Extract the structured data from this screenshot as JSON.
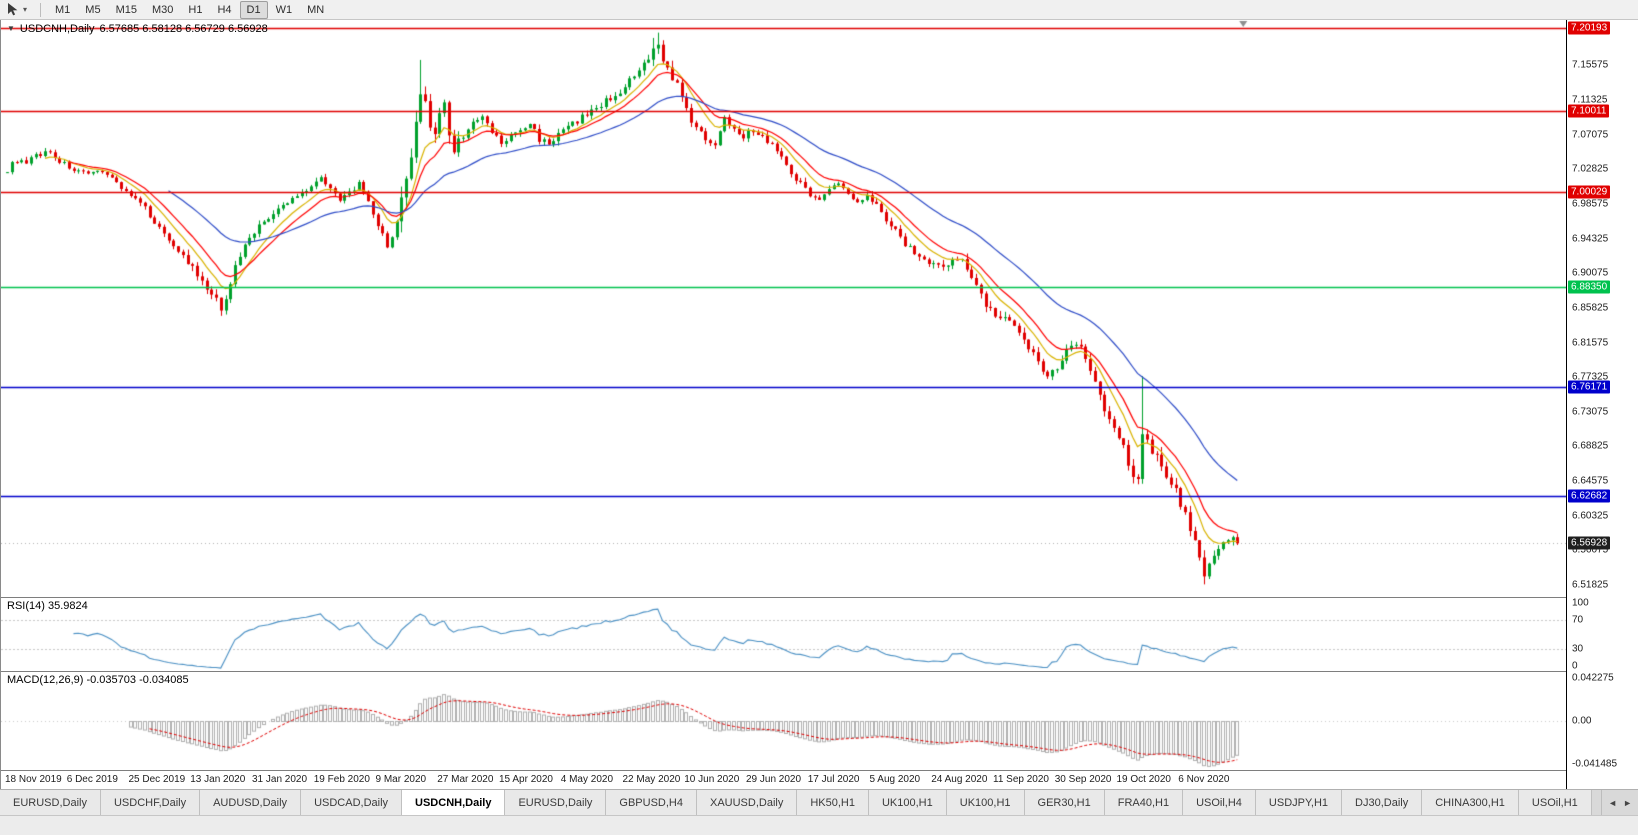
{
  "toolbar": {
    "timeframes": [
      "M1",
      "M5",
      "M15",
      "M30",
      "H1",
      "H4",
      "D1",
      "W1",
      "MN"
    ],
    "active_timeframe": "D1"
  },
  "chart_window": {
    "title": "USDCNH,Daily",
    "ohlc_readout": "6.57685 6.58128 6.56729 6.56928"
  },
  "chart_data": {
    "type": "candlestick",
    "symbol": "USDCNH",
    "timeframe": "Daily",
    "bars": 260,
    "bar_spacing_px": 4.75,
    "price_range": [
      6.5035,
      7.2115
    ],
    "y_ticks": [
      "7.15575",
      "7.11325",
      "7.07075",
      "7.02825",
      "6.98575",
      "6.94325",
      "6.90075",
      "6.85825",
      "6.81575",
      "6.77325",
      "6.73075",
      "6.68825",
      "6.64575",
      "6.60325",
      "6.56075",
      "6.51825"
    ],
    "x_labels": [
      "18 Nov 2019",
      "6 Dec 2019",
      "25 Dec 2019",
      "13 Jan 2020",
      "31 Jan 2020",
      "19 Feb 2020",
      "9 Mar 2020",
      "27 Mar 2020",
      "15 Apr 2020",
      "4 May 2020",
      "22 May 2020",
      "10 Jun 2020",
      "29 Jun 2020",
      "17 Jul 2020",
      "5 Aug 2020",
      "24 Aug 2020",
      "11 Sep 2020",
      "30 Sep 2020",
      "19 Oct 2020",
      "6 Nov 2020"
    ],
    "x_label_step": 13,
    "close_anchors": [
      [
        0,
        7.028
      ],
      [
        2,
        7.04
      ],
      [
        4,
        7.034
      ],
      [
        6,
        7.046
      ],
      [
        9,
        7.05
      ],
      [
        11,
        7.038
      ],
      [
        14,
        7.028
      ],
      [
        17,
        7.02
      ],
      [
        20,
        7.028
      ],
      [
        23,
        7.012
      ],
      [
        26,
        6.996
      ],
      [
        29,
        6.98
      ],
      [
        32,
        6.956
      ],
      [
        35,
        6.936
      ],
      [
        38,
        6.914
      ],
      [
        41,
        6.888
      ],
      [
        44,
        6.866
      ],
      [
        45,
        6.858
      ],
      [
        47,
        6.89
      ],
      [
        49,
        6.924
      ],
      [
        51,
        6.946
      ],
      [
        54,
        6.964
      ],
      [
        57,
        6.978
      ],
      [
        60,
        6.992
      ],
      [
        63,
        7.004
      ],
      [
        66,
        7.018
      ],
      [
        68,
        7.008
      ],
      [
        70,
        6.988
      ],
      [
        72,
        7.0
      ],
      [
        74,
        7.01
      ],
      [
        76,
        6.986
      ],
      [
        78,
        6.96
      ],
      [
        80,
        6.934
      ],
      [
        82,
        6.962
      ],
      [
        84,
        7.01
      ],
      [
        86,
        7.078
      ],
      [
        87,
        7.112
      ],
      [
        88,
        7.12
      ],
      [
        89,
        7.086
      ],
      [
        90,
        7.07
      ],
      [
        91,
        7.098
      ],
      [
        92,
        7.106
      ],
      [
        93,
        7.07
      ],
      [
        94,
        7.056
      ],
      [
        96,
        7.07
      ],
      [
        98,
        7.084
      ],
      [
        100,
        7.092
      ],
      [
        102,
        7.074
      ],
      [
        104,
        7.06
      ],
      [
        106,
        7.068
      ],
      [
        108,
        7.076
      ],
      [
        110,
        7.084
      ],
      [
        112,
        7.066
      ],
      [
        114,
        7.06
      ],
      [
        116,
        7.07
      ],
      [
        118,
        7.08
      ],
      [
        120,
        7.088
      ],
      [
        122,
        7.096
      ],
      [
        124,
        7.104
      ],
      [
        126,
        7.112
      ],
      [
        128,
        7.12
      ],
      [
        130,
        7.128
      ],
      [
        132,
        7.14
      ],
      [
        134,
        7.154
      ],
      [
        136,
        7.172
      ],
      [
        137,
        7.18
      ],
      [
        139,
        7.152
      ],
      [
        141,
        7.13
      ],
      [
        143,
        7.1
      ],
      [
        145,
        7.078
      ],
      [
        147,
        7.066
      ],
      [
        149,
        7.06
      ],
      [
        151,
        7.09
      ],
      [
        153,
        7.08
      ],
      [
        155,
        7.07
      ],
      [
        157,
        7.076
      ],
      [
        159,
        7.068
      ],
      [
        161,
        7.06
      ],
      [
        163,
        7.042
      ],
      [
        165,
        7.026
      ],
      [
        167,
        7.01
      ],
      [
        169,
        6.998
      ],
      [
        171,
        6.994
      ],
      [
        173,
        7.002
      ],
      [
        175,
        7.012
      ],
      [
        177,
        6.996
      ],
      [
        179,
        6.988
      ],
      [
        181,
        7.0
      ],
      [
        183,
        6.984
      ],
      [
        185,
        6.968
      ],
      [
        187,
        6.952
      ],
      [
        189,
        6.938
      ],
      [
        191,
        6.926
      ],
      [
        193,
        6.918
      ],
      [
        195,
        6.912
      ],
      [
        197,
        6.908
      ],
      [
        199,
        6.914
      ],
      [
        201,
        6.92
      ],
      [
        203,
        6.9
      ],
      [
        205,
        6.874
      ],
      [
        207,
        6.854
      ],
      [
        209,
        6.846
      ],
      [
        211,
        6.84
      ],
      [
        213,
        6.824
      ],
      [
        215,
        6.81
      ],
      [
        217,
        6.794
      ],
      [
        219,
        6.776
      ],
      [
        221,
        6.782
      ],
      [
        223,
        6.808
      ],
      [
        225,
        6.818
      ],
      [
        227,
        6.8
      ],
      [
        229,
        6.768
      ],
      [
        231,
        6.736
      ],
      [
        233,
        6.712
      ],
      [
        235,
        6.685
      ],
      [
        237,
        6.655
      ],
      [
        238,
        6.644
      ],
      [
        239,
        6.71
      ],
      [
        240,
        6.698
      ],
      [
        241,
        6.686
      ],
      [
        243,
        6.662
      ],
      [
        245,
        6.644
      ],
      [
        247,
        6.62
      ],
      [
        249,
        6.588
      ],
      [
        251,
        6.55
      ],
      [
        252,
        6.532
      ],
      [
        253,
        6.548
      ],
      [
        255,
        6.562
      ],
      [
        257,
        6.572
      ],
      [
        258,
        6.57685
      ],
      [
        259,
        6.56928
      ]
    ],
    "vol_zones": [
      [
        0,
        37,
        0.005
      ],
      [
        38,
        50,
        0.0085
      ],
      [
        51,
        82,
        0.0055
      ],
      [
        83,
        95,
        0.017
      ],
      [
        96,
        130,
        0.0062
      ],
      [
        131,
        142,
        0.0095
      ],
      [
        143,
        182,
        0.006
      ],
      [
        183,
        201,
        0.0065
      ],
      [
        202,
        233,
        0.008
      ],
      [
        234,
        259,
        0.0105
      ]
    ],
    "wick_overrides": [
      {
        "bar": 45,
        "low": 6.8485
      },
      {
        "bar": 87,
        "high": 7.1625
      },
      {
        "bar": 136,
        "high": 7.1895
      },
      {
        "bar": 137,
        "high": 7.196
      },
      {
        "bar": 239,
        "high": 6.7745
      },
      {
        "bar": 252,
        "low": 6.519
      },
      {
        "bar": 259,
        "high": 6.58128,
        "low": 6.56729
      }
    ],
    "close_overrides": [
      [
        258,
        6.57685
      ],
      [
        259,
        6.56928
      ]
    ],
    "hlines": [
      {
        "price": 7.20193,
        "label": "7.20193",
        "color": "#e00000"
      },
      {
        "price": 7.10011,
        "label": "7.10011",
        "color": "#e00000"
      },
      {
        "price": 7.00029,
        "label": "7.00029",
        "color": "#e00000"
      },
      {
        "price": 6.8835,
        "label": "6.88350",
        "color": "#00c24e"
      },
      {
        "price": 6.76171,
        "label": "6.76171",
        "color": "#0000cc"
      },
      {
        "price": 6.62682,
        "label": "6.62682",
        "color": "#0000cc"
      }
    ],
    "current_tag": {
      "price": 6.56928,
      "label": "6.56928",
      "bg": "#1f1f1f"
    },
    "colors": {
      "bull": "#00a12c",
      "bear": "#e00000",
      "ma_fast": "#d9b300",
      "ma_mid": "#ff0000",
      "ma_slow": "#2e4cc8",
      "rsi": "#4a90c4",
      "rsi_level": "#c8c8c8",
      "macd_hist": "#b0b0b0",
      "macd_signal": "#e00000",
      "bid_line": "#b0b0b0",
      "shift_marker": "#8f8f8f"
    },
    "moving_averages": [
      {
        "period": 8,
        "color_key": "ma_fast"
      },
      {
        "period": 13,
        "color_key": "ma_mid"
      },
      {
        "period": 34,
        "color_key": "ma_slow"
      }
    ],
    "indicators": {
      "rsi": {
        "label": "RSI(14) 35.9824",
        "period": 14,
        "levels": [
          70,
          30
        ],
        "axis_labels": [
          "100",
          "70",
          "30",
          "0"
        ],
        "axis_values": [
          100,
          70,
          30,
          0
        ],
        "range": [
          0,
          100
        ]
      },
      "macd": {
        "label": "MACD(12,26,9) -0.035703 -0.034085",
        "fast": 12,
        "slow": 26,
        "signal": 9,
        "axis_labels": [
          "0.042275",
          "0.00",
          "-0.041485"
        ]
      }
    }
  },
  "tab_bar": {
    "tabs": [
      "EURUSD,Daily",
      "USDCHF,Daily",
      "AUDUSD,Daily",
      "USDCAD,Daily",
      "USDCNH,Daily",
      "EURUSD,Daily",
      "GBPUSD,H4",
      "XAUUSD,Daily",
      "HK50,H1",
      "UK100,H1",
      "UK100,H1",
      "GER30,H1",
      "FRA40,H1",
      "USOil,H4",
      "USDJPY,H1",
      "DJ30,Daily",
      "CHINA300,H1",
      "USOil,H1"
    ],
    "active_index": 4,
    "scroll_left": "◄",
    "scroll_right": "►"
  }
}
